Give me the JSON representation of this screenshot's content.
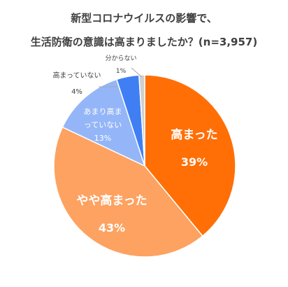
{
  "chart_data": {
    "type": "pie",
    "title_line1": "新型コロナウイルスの影響で、",
    "title_line2": "生活防衛の意識は高まりましたか？(n=3,957)",
    "slices": [
      {
        "label": "高まった",
        "value": 39,
        "value_label": "39%",
        "color": "#ff6f06"
      },
      {
        "label": "やや高まった",
        "value": 43,
        "value_label": "43%",
        "color": "#fda261"
      },
      {
        "label": "あまり高まっていない",
        "value": 13,
        "value_label": "13%",
        "color": "#94b6f8"
      },
      {
        "label": "高まっていない",
        "value": 4,
        "value_label": "4%",
        "color": "#3f7ff3"
      },
      {
        "label": "分からない",
        "value": 1,
        "value_label": "1%",
        "color": "#cfcfcf"
      }
    ]
  }
}
